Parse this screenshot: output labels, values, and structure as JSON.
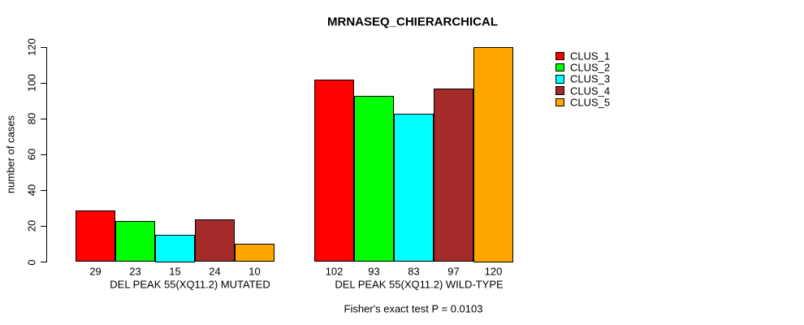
{
  "chart_data": {
    "type": "bar",
    "title": "MRNASEQ_CHIERARCHICAL",
    "ylabel": "number of cases",
    "xlabel": "",
    "ylim": [
      0,
      120
    ],
    "yticks": [
      0,
      20,
      40,
      60,
      80,
      100,
      120
    ],
    "grid": false,
    "legend_position": "top-right",
    "categories": [
      "DEL PEAK 55(XQ11.2) MUTATED",
      "DEL PEAK 55(XQ11.2) WILD-TYPE"
    ],
    "series": [
      {
        "name": "CLUS_1",
        "color": "#FF0000",
        "values": [
          29,
          102
        ]
      },
      {
        "name": "CLUS_2",
        "color": "#00FF00",
        "values": [
          23,
          93
        ]
      },
      {
        "name": "CLUS_3",
        "color": "#00FFFF",
        "values": [
          15,
          83
        ]
      },
      {
        "name": "CLUS_4",
        "color": "#A52A2A",
        "values": [
          24,
          97
        ]
      },
      {
        "name": "CLUS_5",
        "color": "#FFA500",
        "values": [
          10,
          120
        ]
      }
    ],
    "bar_value_labels_shown": true,
    "footnote": "Fisher's exact test P = 0.0103",
    "axis_color": "#000000",
    "background_color": "#FFFFFF"
  }
}
